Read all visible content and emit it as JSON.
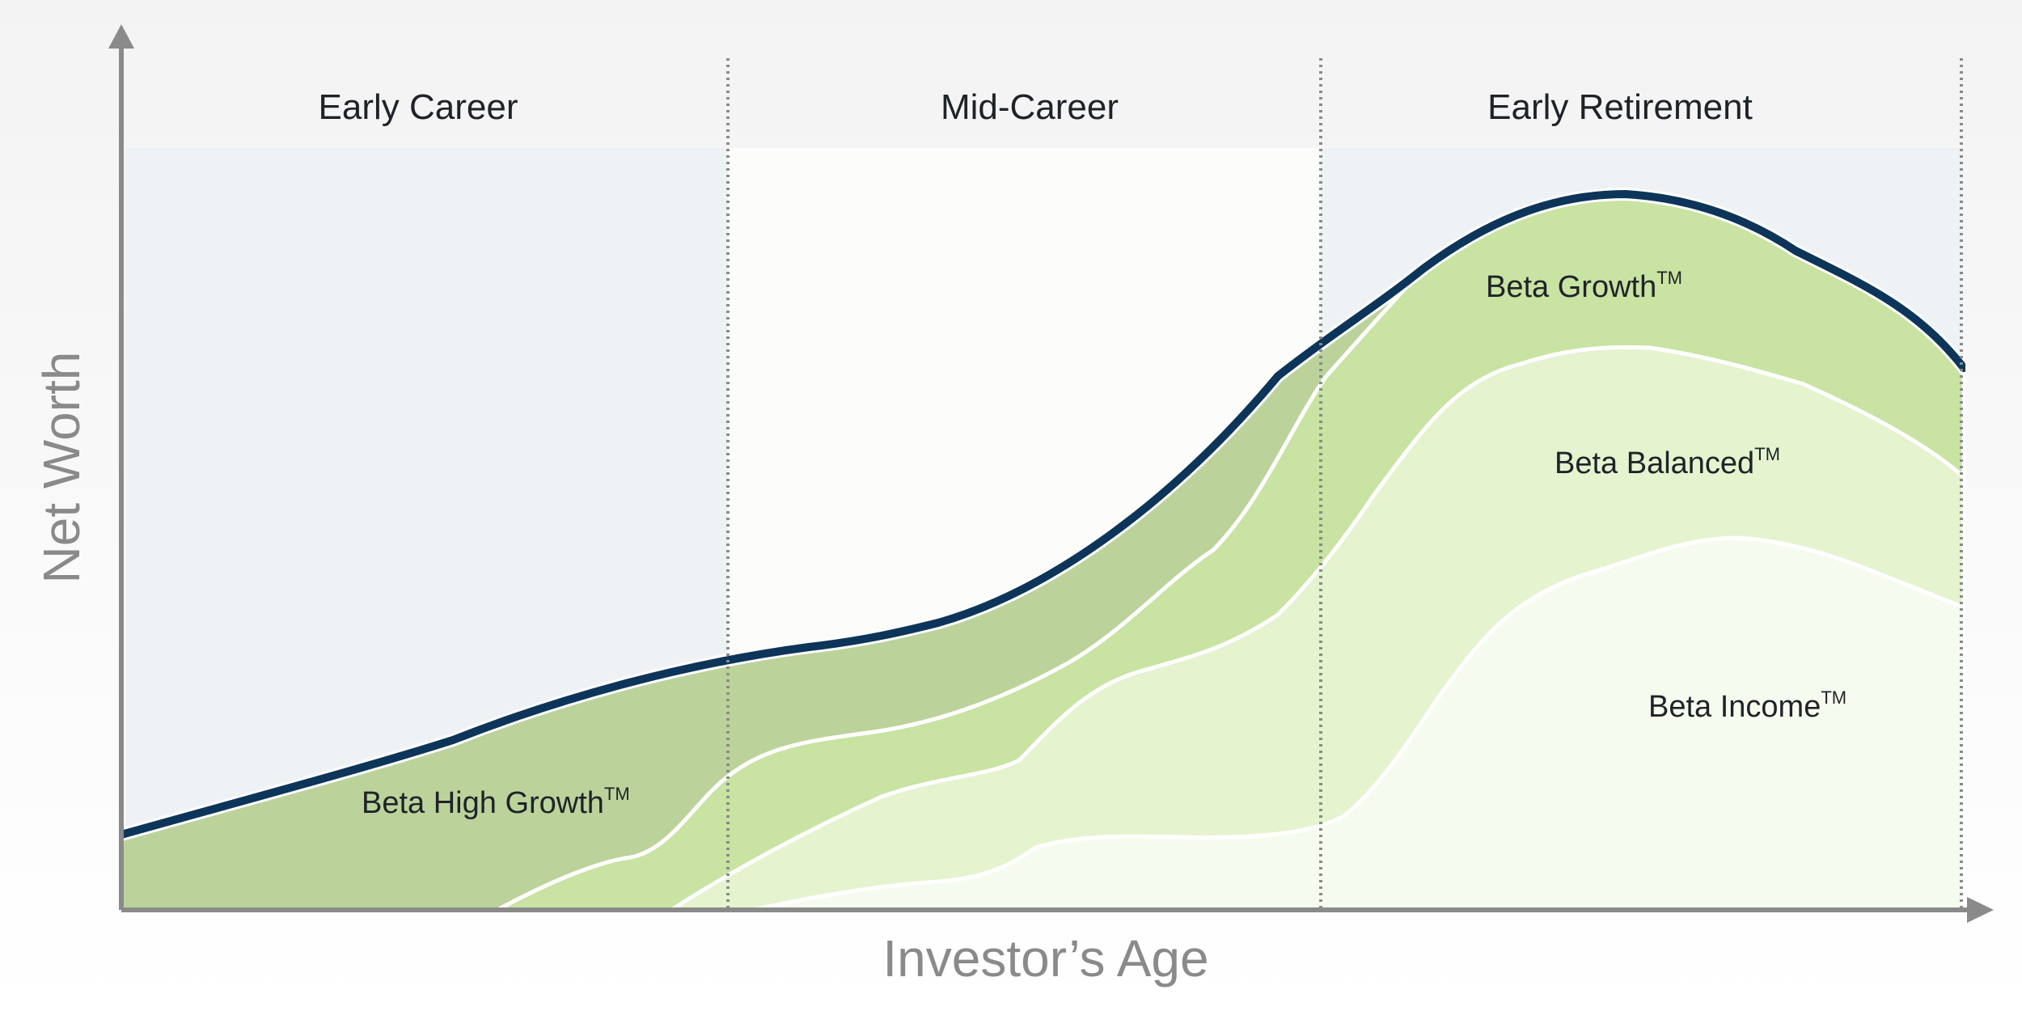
{
  "chart_data": {
    "type": "area",
    "title": "",
    "xlabel": "Investor’s Age",
    "ylabel": "Net Worth",
    "x_ticks_shown": false,
    "y_ticks_shown": false,
    "grid": false,
    "phases": [
      {
        "label": "Early Career"
      },
      {
        "label": "Mid-Career"
      },
      {
        "label": "Early Retirement"
      }
    ],
    "series": [
      {
        "name": "Beta High Growth",
        "superscript": "TM",
        "color": "#bbd39b"
      },
      {
        "name": "Beta Growth",
        "superscript": "TM",
        "color": "#c8e3a2"
      },
      {
        "name": "Beta Balanced",
        "superscript": "TM",
        "color": "#e5f3cf"
      },
      {
        "name": "Beta Income",
        "superscript": "TM",
        "color": "#f6fbef"
      }
    ],
    "net_worth_line_color": "#0d3559",
    "phase_backgrounds": [
      "#eef2f5",
      "#fcfcfb",
      "#eef2f5"
    ]
  }
}
